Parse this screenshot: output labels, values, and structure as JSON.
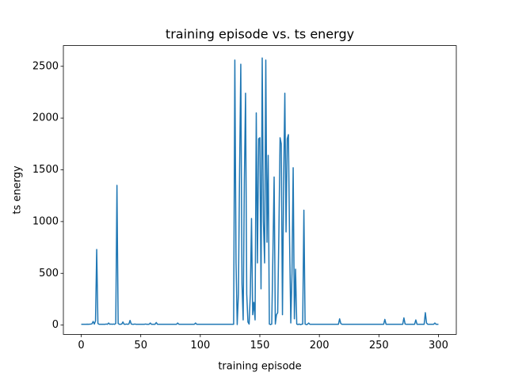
{
  "chart_data": {
    "type": "line",
    "title": "training episode vs. ts energy",
    "xlabel": "training episode",
    "ylabel": "ts energy",
    "color": "#1f77b4",
    "xlim": [
      -15,
      315
    ],
    "ylim": [
      -90,
      2700
    ],
    "xticks": [
      0,
      50,
      100,
      150,
      200,
      250,
      300
    ],
    "yticks": [
      0,
      500,
      1000,
      1500,
      2000,
      2500
    ],
    "x": [
      0,
      1,
      2,
      3,
      4,
      5,
      6,
      7,
      8,
      9,
      10,
      11,
      12,
      13,
      14,
      15,
      16,
      17,
      18,
      19,
      20,
      21,
      22,
      23,
      24,
      25,
      26,
      27,
      28,
      29,
      30,
      31,
      32,
      33,
      34,
      35,
      36,
      37,
      38,
      39,
      40,
      41,
      42,
      43,
      44,
      45,
      46,
      47,
      48,
      49,
      50,
      51,
      52,
      53,
      54,
      55,
      56,
      57,
      58,
      59,
      60,
      61,
      62,
      63,
      64,
      65,
      66,
      67,
      68,
      69,
      70,
      71,
      72,
      73,
      74,
      75,
      76,
      77,
      78,
      79,
      80,
      81,
      82,
      83,
      84,
      85,
      86,
      87,
      88,
      89,
      90,
      91,
      92,
      93,
      94,
      95,
      96,
      97,
      98,
      99,
      100,
      101,
      102,
      103,
      104,
      105,
      106,
      107,
      108,
      109,
      110,
      111,
      112,
      113,
      114,
      115,
      116,
      117,
      118,
      119,
      120,
      121,
      122,
      123,
      124,
      125,
      126,
      127,
      128,
      129,
      130,
      131,
      132,
      133,
      134,
      135,
      136,
      137,
      138,
      139,
      140,
      141,
      142,
      143,
      144,
      145,
      146,
      147,
      148,
      149,
      150,
      151,
      152,
      153,
      154,
      155,
      156,
      157,
      158,
      159,
      160,
      161,
      162,
      163,
      164,
      165,
      166,
      167,
      168,
      169,
      170,
      171,
      172,
      173,
      174,
      175,
      176,
      177,
      178,
      179,
      180,
      181,
      182,
      183,
      184,
      185,
      186,
      187,
      188,
      189,
      190,
      191,
      192,
      193,
      194,
      195,
      196,
      197,
      198,
      199,
      200,
      201,
      202,
      203,
      204,
      205,
      206,
      207,
      208,
      209,
      210,
      211,
      212,
      213,
      214,
      215,
      216,
      217,
      218,
      219,
      220,
      221,
      222,
      223,
      224,
      225,
      226,
      227,
      228,
      229,
      230,
      231,
      232,
      233,
      234,
      235,
      236,
      237,
      238,
      239,
      240,
      241,
      242,
      243,
      244,
      245,
      246,
      247,
      248,
      249,
      250,
      251,
      252,
      253,
      254,
      255,
      256,
      257,
      258,
      259,
      260,
      261,
      262,
      263,
      264,
      265,
      266,
      267,
      268,
      269,
      270,
      271,
      272,
      273,
      274,
      275,
      276,
      277,
      278,
      279,
      280,
      281,
      282,
      283,
      284,
      285,
      286,
      287,
      288,
      289,
      290,
      291,
      292,
      293,
      294,
      295,
      296,
      297,
      298,
      299,
      300
    ],
    "values": [
      8,
      8,
      8,
      8,
      8,
      9,
      8,
      9,
      10,
      12,
      35,
      10,
      40,
      730,
      15,
      8,
      8,
      8,
      8,
      8,
      8,
      10,
      8,
      20,
      8,
      10,
      8,
      10,
      8,
      15,
      1350,
      15,
      8,
      8,
      10,
      30,
      8,
      8,
      10,
      8,
      10,
      45,
      10,
      8,
      8,
      10,
      8,
      8,
      8,
      8,
      8,
      8,
      8,
      8,
      10,
      8,
      8,
      8,
      20,
      8,
      8,
      8,
      8,
      25,
      8,
      8,
      8,
      8,
      8,
      8,
      8,
      8,
      8,
      8,
      8,
      8,
      8,
      8,
      8,
      8,
      8,
      20,
      8,
      8,
      8,
      8,
      8,
      8,
      8,
      8,
      8,
      8,
      8,
      8,
      8,
      8,
      20,
      8,
      8,
      8,
      8,
      8,
      8,
      8,
      8,
      8,
      8,
      8,
      8,
      8,
      8,
      8,
      8,
      8,
      8,
      8,
      8,
      8,
      8,
      8,
      8,
      8,
      8,
      8,
      8,
      8,
      8,
      8,
      8,
      2560,
      600,
      5,
      300,
      1500,
      2520,
      400,
      50,
      1400,
      2240,
      300,
      30,
      10,
      300,
      1030,
      100,
      220,
      50,
      2050,
      600,
      1800,
      1810,
      350,
      2580,
      1000,
      600,
      2560,
      800,
      1640,
      10,
      5,
      10,
      700,
      1430,
      10,
      100,
      120,
      900,
      1810,
      1750,
      100,
      1400,
      2240,
      900,
      1800,
      1840,
      800,
      20,
      500,
      1520,
      60,
      540,
      10,
      5,
      10,
      5,
      8,
      10,
      1110,
      10,
      5,
      8,
      20,
      8,
      8,
      8,
      8,
      8,
      8,
      8,
      8,
      8,
      8,
      8,
      8,
      8,
      8,
      8,
      8,
      8,
      8,
      8,
      8,
      8,
      8,
      8,
      8,
      8,
      60,
      15,
      8,
      8,
      8,
      8,
      8,
      8,
      8,
      8,
      8,
      8,
      8,
      8,
      8,
      8,
      8,
      8,
      8,
      8,
      8,
      8,
      8,
      8,
      8,
      8,
      8,
      8,
      8,
      8,
      8,
      8,
      8,
      8,
      8,
      8,
      8,
      8,
      55,
      8,
      8,
      8,
      8,
      8,
      8,
      8,
      8,
      8,
      8,
      8,
      8,
      8,
      8,
      8,
      70,
      10,
      8,
      8,
      8,
      8,
      8,
      8,
      8,
      8,
      50,
      8,
      8,
      8,
      8,
      8,
      8,
      8,
      120,
      20,
      8,
      8,
      8,
      8,
      8,
      8,
      20,
      8,
      8,
      8
    ]
  }
}
